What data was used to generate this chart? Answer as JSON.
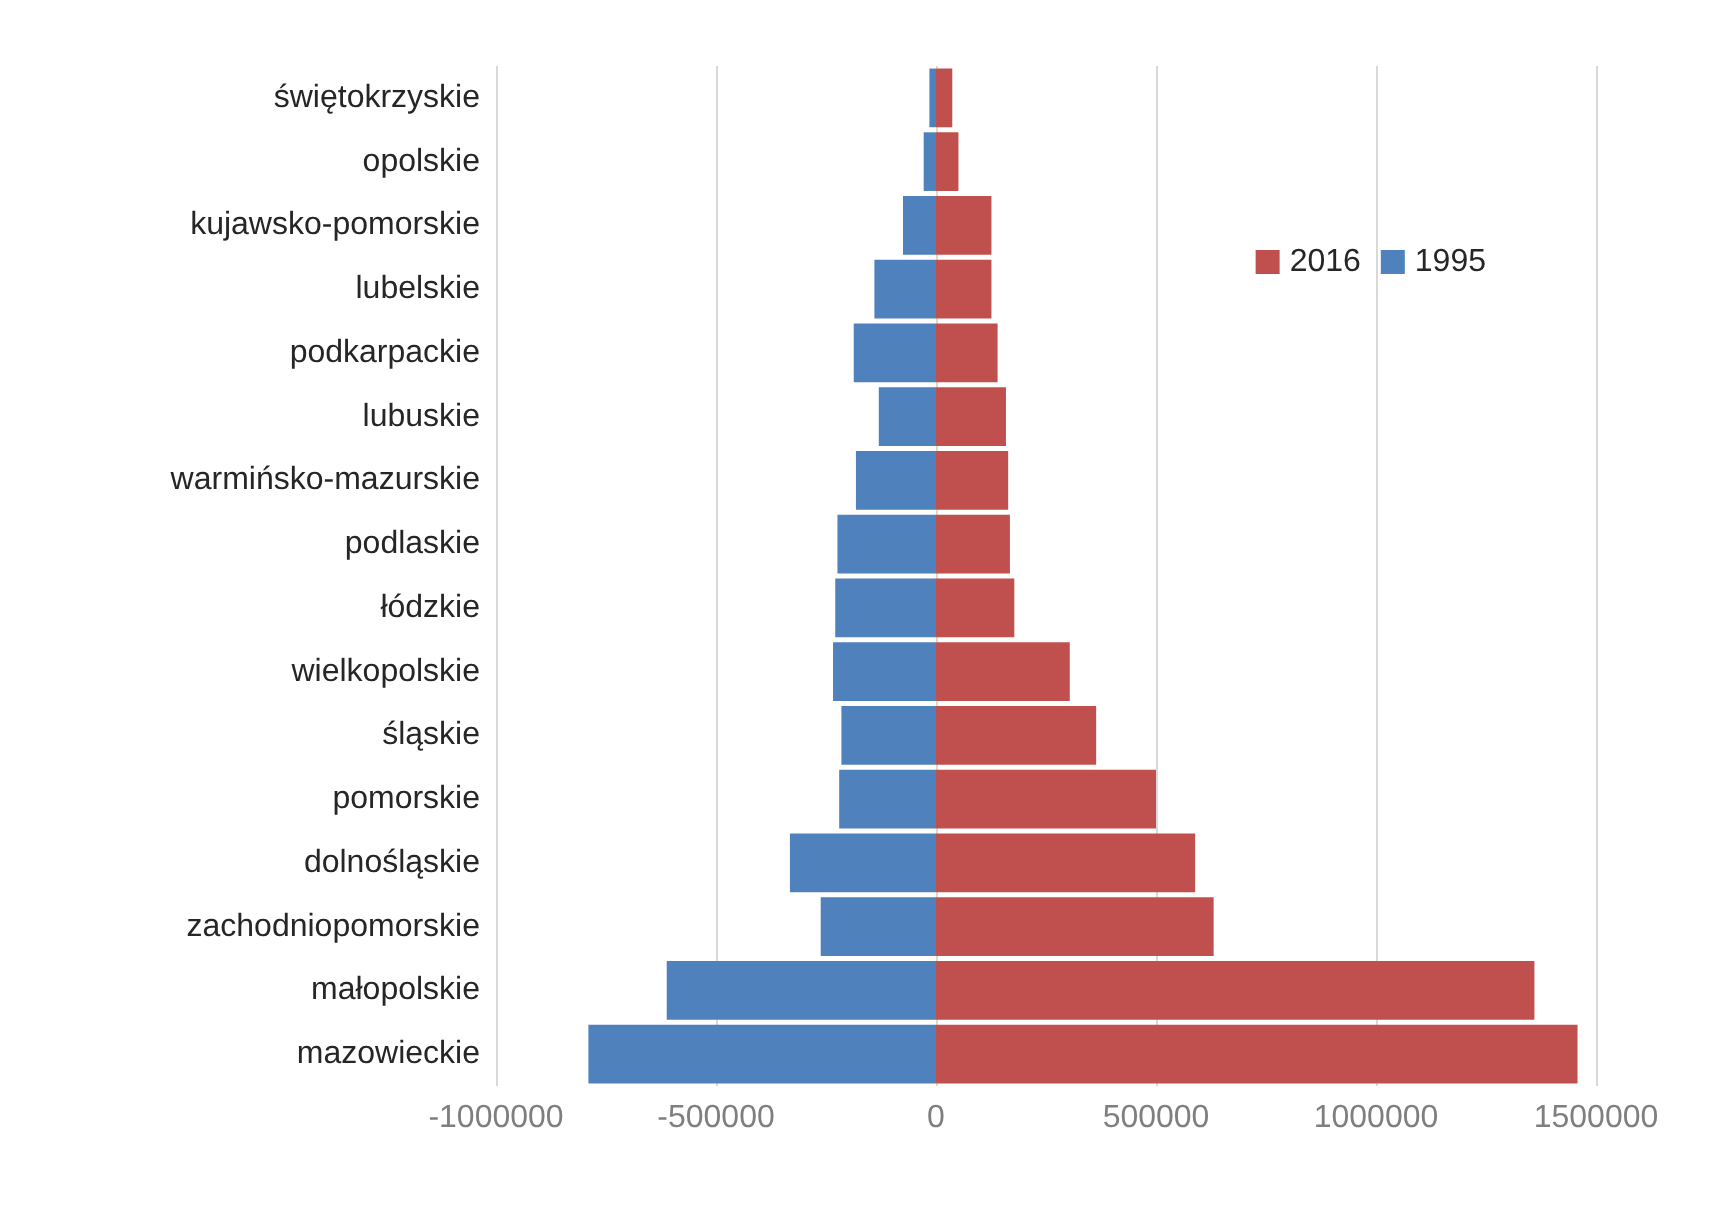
{
  "chart_data": {
    "type": "bar",
    "orientation": "horizontal",
    "categories": [
      "świętokrzyskie",
      "opolskie",
      "kujawsko-pomorskie",
      "lubelskie",
      "podkarpackie",
      "lubuskie",
      "warmińsko-mazurskie",
      "podlaskie",
      "łódzkie",
      "wielkopolskie",
      "śląskie",
      "pomorskie",
      "dolnośląskie",
      "zachodniopomorskie",
      "małopolskie",
      "mazowieckie"
    ],
    "series": [
      {
        "name": "2016",
        "color": "#c0504d",
        "values": [
          37000,
          51000,
          126000,
          126000,
          140000,
          159000,
          164000,
          168000,
          178000,
          304000,
          364000,
          500000,
          589000,
          631000,
          1360000,
          1458000
        ]
      },
      {
        "name": "1995",
        "color": "#4f81bd",
        "values": [
          -15000,
          -28000,
          -75000,
          -140000,
          -187000,
          -130000,
          -182000,
          -224000,
          -229000,
          -234000,
          -215000,
          -220000,
          -332000,
          -262000,
          -612000,
          -790000
        ]
      }
    ],
    "xlim": [
      -1000000,
      1500000
    ],
    "xticks": [
      -1000000,
      -500000,
      0,
      500000,
      1000000,
      1500000
    ],
    "grid": "x",
    "legend": "top right",
    "stacked": true
  }
}
